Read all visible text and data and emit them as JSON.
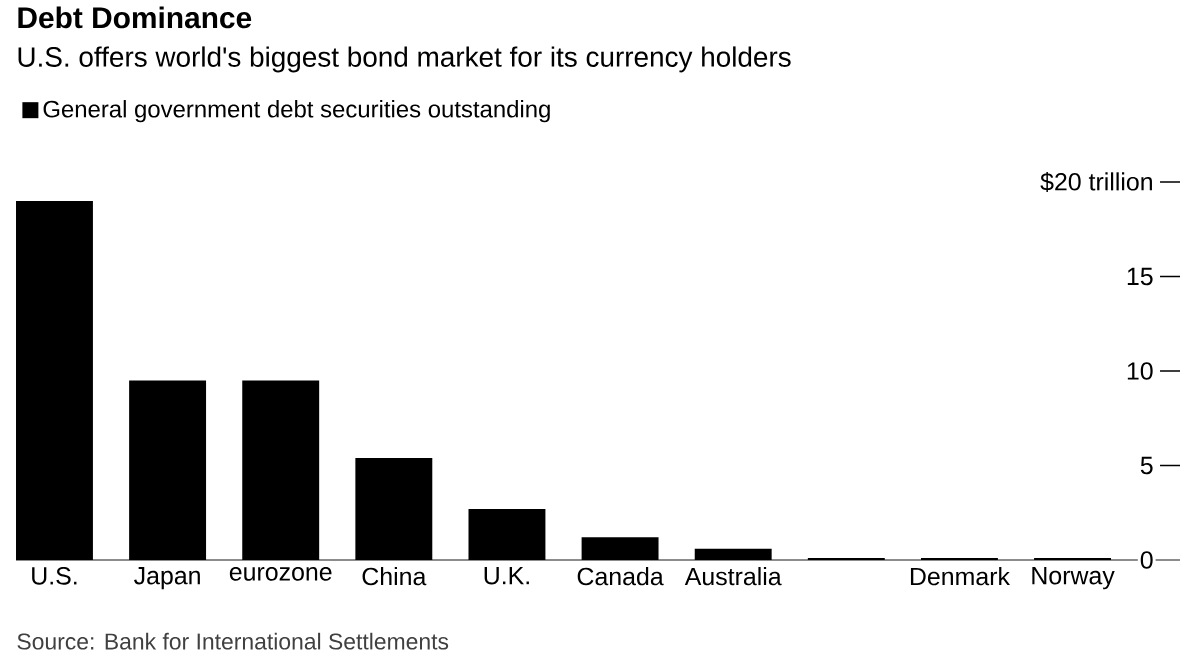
{
  "chart_data": {
    "type": "bar",
    "title": "Debt Dominance",
    "subtitle": "U.S. offers world's biggest bond market for its currency holders",
    "categories": [
      "U.S.",
      "Japan",
      "eurozone",
      "China",
      "U.K.",
      "Canada",
      "Australia",
      null,
      "Denmark",
      "Norway"
    ],
    "series": [
      {
        "name": "General government debt securities outstanding",
        "color": "#000000",
        "values": [
          19.0,
          9.5,
          9.5,
          5.4,
          2.7,
          1.2,
          0.6,
          0.1,
          0.1,
          0.1
        ]
      }
    ],
    "ylim": [
      0,
      20
    ],
    "yticks": [
      0,
      5,
      10,
      15,
      {
        "value": 20,
        "label": "$20 trillion"
      }
    ],
    "legend": "top left",
    "annotations": [
      "Source: Bank for International Settlements"
    ]
  }
}
